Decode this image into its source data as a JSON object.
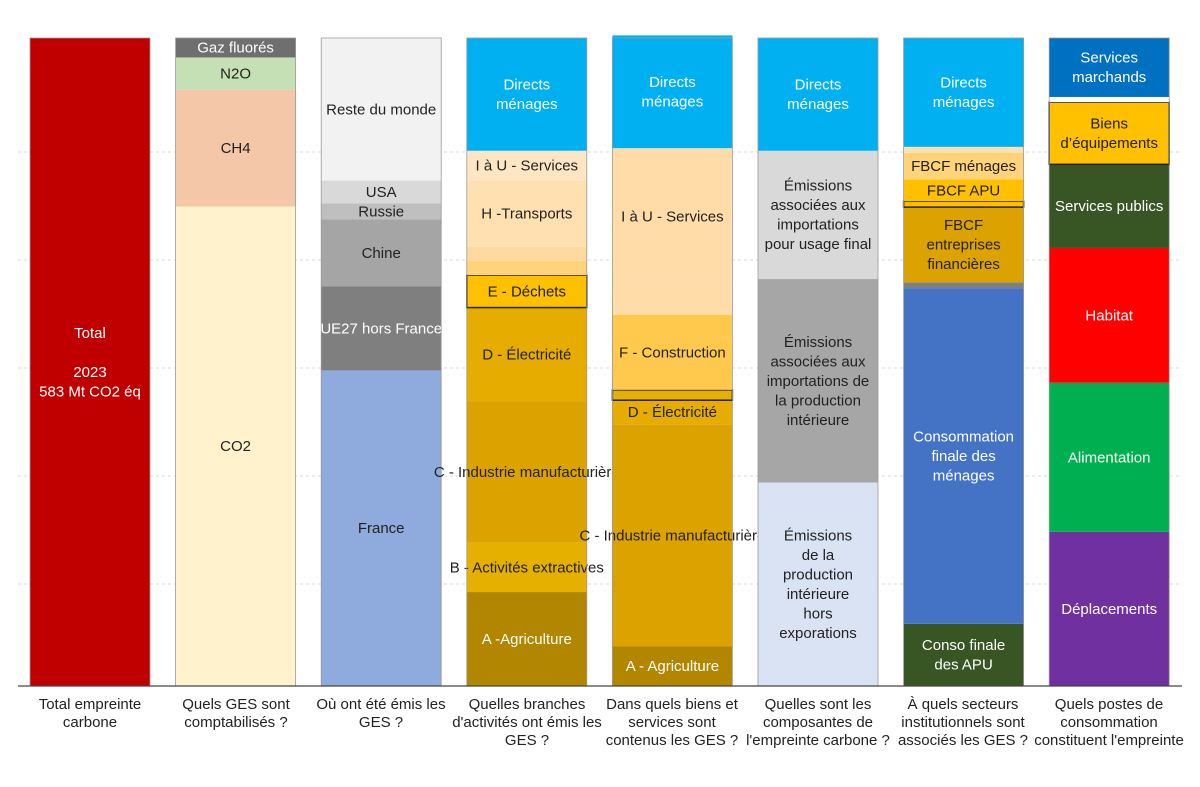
{
  "chart_data": {
    "type": "bar",
    "stacked": true,
    "grid": true,
    "categories": [
      "Total empreinte carbone",
      "Quels GES sont comptabilisés  ?",
      "Où ont été émis les GES ?",
      "Quelles branches d'activités ont émis les GES ?",
      "Dans quels biens et services sont contenus les GES ?",
      "Quelles sont les composantes de l'empreinte carbone ?",
      "À quels secteurs institutionnels sont associés les GES ?",
      "Quels postes de consommation constituent l'empreinte"
    ],
    "columns": [
      {
        "segments": [
          {
            "label": "Total\n\n2023\n583 Mt CO2  éq",
            "value": 100,
            "color": "#c00000"
          }
        ]
      },
      {
        "segments": [
          {
            "label": "CO2",
            "value": 74,
            "color": "#fff2cc"
          },
          {
            "label": "CH4",
            "value": 18,
            "color": "#f4c7a8"
          },
          {
            "label": "N2O",
            "value": 5,
            "color": "#c5e0b4"
          },
          {
            "label": "Gaz fluorés",
            "value": 3,
            "color": "#6f6f6f"
          }
        ]
      },
      {
        "segments": [
          {
            "label": "France",
            "value": 48.7,
            "color": "#8faadc"
          },
          {
            "label": "UE27 hors France",
            "value": 13,
            "color": "#7f7f7f"
          },
          {
            "label": "Chine",
            "value": 10.3,
            "color": "#a5a5a5"
          },
          {
            "label": "Russie",
            "value": 2.5,
            "color": "#bfbfbf"
          },
          {
            "label": "USA",
            "value": 3.5,
            "color": "#d9d9d9"
          },
          {
            "label": "Reste du monde",
            "value": 21.9,
            "color": "#f2f2f2"
          }
        ]
      },
      {
        "segments": [
          {
            "label": "A -Agriculture",
            "value": 14.5,
            "color": "#b38600"
          },
          {
            "label": "B - Activités extractives",
            "value": 7.6,
            "color": "#e6b000"
          },
          {
            "label": "C - Industrie manufacturière",
            "value": 21.8,
            "color": "#dca200"
          },
          {
            "label": "D - Électricité",
            "value": 14.5,
            "color": "#e6ac00"
          },
          {
            "label": "E - Déchets",
            "value": 5,
            "color": "#ffc000",
            "outlined": true
          },
          {
            "label": "",
            "value": 2.2,
            "color": "#ffd37a"
          },
          {
            "label": "",
            "value": 2.2,
            "color": "#ffd9a0"
          },
          {
            "label": "H -Transports",
            "value": 10.2,
            "color": "#ffe0b0"
          },
          {
            "label": "I à U - Services",
            "value": 4.6,
            "color": "#ffe6c2"
          },
          {
            "label": "Directs\nménages",
            "value": 17.4,
            "color": "#00b0f0"
          }
        ]
      },
      {
        "segments": [
          {
            "label": "A - Agriculture",
            "value": 6.1,
            "color": "#b38600"
          },
          {
            "label": "C - Industrie manufacturière",
            "value": 34.3,
            "color": "#dca200"
          },
          {
            "label": "D - Électricité",
            "value": 3.7,
            "color": "#e6ac00"
          },
          {
            "label": "",
            "value": 1.6,
            "color": "#e6b000",
            "outlined": true
          },
          {
            "label": "F - Construction",
            "value": 11.6,
            "color": "#ffc94d"
          },
          {
            "label": "",
            "value": 4.6,
            "color": "#ffdca8"
          },
          {
            "label": "I à U - Services",
            "value": 21.1,
            "color": "#ffdca8"
          },
          {
            "label": "Directs\nménages",
            "value": 17.4,
            "color": "#00b0f0"
          }
        ]
      },
      {
        "segments": [
          {
            "label": "Émissions\nde la\nproduction\nintérieure\nhors\nexporations",
            "value": 31.4,
            "color": "#dae3f3"
          },
          {
            "label": "Émissions\nassociées aux\nimportations de\nla production\nintérieure",
            "value": 31.4,
            "color": "#a6a6a6"
          },
          {
            "label": "Émissions\nassociées aux\nimportations\npour usage final",
            "value": 19.8,
            "color": "#d9d9d9"
          },
          {
            "label": "Directs\nménages",
            "value": 17.4,
            "color": "#00b0f0"
          }
        ]
      },
      {
        "segments": [
          {
            "label": "Conso finale\ndes APU",
            "value": 9.6,
            "color": "#375623"
          },
          {
            "label": "Consommation\nfinale des\nménages",
            "value": 51.8,
            "color": "#4472c4"
          },
          {
            "label": "",
            "value": 0.9,
            "color": "#7f7f7f"
          },
          {
            "label": "FBCF\nentreprises\nfinancières",
            "value": 11.6,
            "color": "#dca200"
          },
          {
            "label": "",
            "value": 0.9,
            "color": "#ffc000",
            "outlined": true
          },
          {
            "label": "FBCF APU",
            "value": 3.4,
            "color": "#ffc000"
          },
          {
            "label": "FBCF ménages",
            "value": 4.1,
            "color": "#ffd37a"
          },
          {
            "label": "",
            "value": 0.9,
            "color": "#ffe0b0"
          },
          {
            "label": "Directs\nménages",
            "value": 16.8,
            "color": "#00b0f0"
          }
        ]
      },
      {
        "segments": [
          {
            "label": "Déplacements",
            "value": 23.8,
            "color": "#7030a0"
          },
          {
            "label": "Alimentation",
            "value": 23,
            "color": "#00b050"
          },
          {
            "label": "Habitat",
            "value": 20.8,
            "color": "#ff0000"
          },
          {
            "label": "Services publics",
            "value": 12.9,
            "color": "#375623"
          },
          {
            "label": "Biens\nd’équipements",
            "value": 9.6,
            "color": "#ffc000",
            "outlined": true
          },
          {
            "label": "",
            "value": 0.8,
            "color": "#ffffff"
          },
          {
            "label": "Services\nmarchands",
            "value": 9.1,
            "color": "#0070c0"
          }
        ]
      }
    ],
    "ylim": [
      0,
      100
    ]
  }
}
